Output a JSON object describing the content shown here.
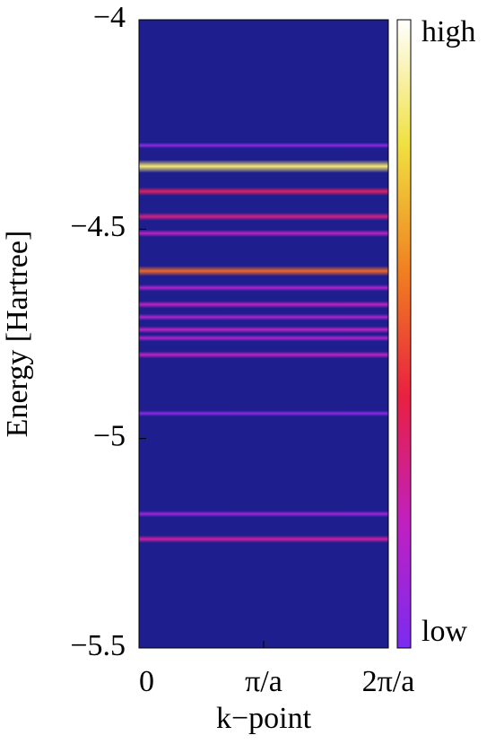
{
  "chart_data": {
    "type": "heatmap",
    "y_label": "Energy [Hartree]",
    "x_label": "k−point",
    "ylim": [
      -5.5,
      -4
    ],
    "yticks": [
      {
        "value": -4,
        "label": "−4"
      },
      {
        "value": -4.5,
        "label": "−4.5"
      },
      {
        "value": -5,
        "label": "−5"
      },
      {
        "value": -5.5,
        "label": "−5.5"
      }
    ],
    "xlim": [
      0,
      2
    ],
    "xticks": [
      {
        "value": 0,
        "label": "0"
      },
      {
        "value": 1,
        "label": "π/a"
      },
      {
        "value": 2,
        "label": "2π/a"
      }
    ],
    "background": "#1e1e8e",
    "colorbar": {
      "high_label": "high",
      "low_label": "low",
      "colors": [
        "#7a2cf0",
        "#c020c0",
        "#e82040",
        "#f08020",
        "#f0e040",
        "#ffffff"
      ]
    },
    "bands": [
      {
        "energy": -4.3,
        "intensity": 0.05
      },
      {
        "energy": -4.35,
        "intensity": 0.85
      },
      {
        "energy": -4.41,
        "intensity": 0.35
      },
      {
        "energy": -4.47,
        "intensity": 0.3
      },
      {
        "energy": -4.51,
        "intensity": 0.2
      },
      {
        "energy": -4.6,
        "intensity": 0.55
      },
      {
        "energy": -4.64,
        "intensity": 0.15
      },
      {
        "energy": -4.68,
        "intensity": 0.2
      },
      {
        "energy": -4.71,
        "intensity": 0.15
      },
      {
        "energy": -4.74,
        "intensity": 0.2
      },
      {
        "energy": -4.76,
        "intensity": 0.15
      },
      {
        "energy": -4.8,
        "intensity": 0.2
      },
      {
        "energy": -4.94,
        "intensity": 0.05
      },
      {
        "energy": -5.18,
        "intensity": 0.1
      },
      {
        "energy": -5.24,
        "intensity": 0.25
      }
    ]
  }
}
